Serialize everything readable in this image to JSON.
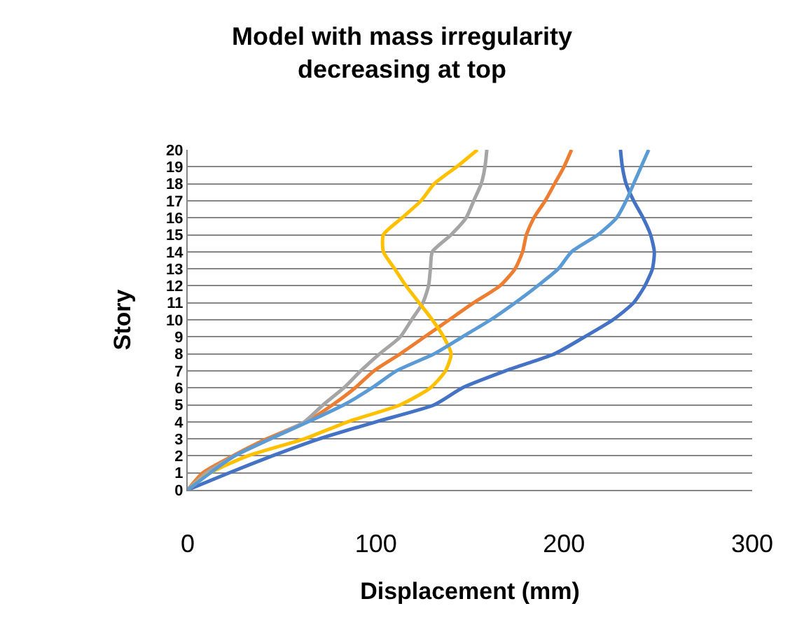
{
  "chart_data": {
    "type": "line",
    "title": "Model with mass irregularity decreasing at top",
    "xlabel": "Displacement (mm)",
    "ylabel": "Story",
    "xlim": [
      0,
      300
    ],
    "xticks": [
      0,
      100,
      200,
      300
    ],
    "ylim": [
      0,
      20
    ],
    "yticks": [
      0,
      1,
      2,
      3,
      4,
      5,
      6,
      7,
      8,
      9,
      10,
      11,
      12,
      13,
      14,
      15,
      16,
      17,
      18,
      19,
      20
    ],
    "grid": "y",
    "marker": "none",
    "line_style": "solid",
    "series": [
      {
        "color": "#4472c4",
        "x": [
          0,
          22,
          45,
          70,
          100,
          131,
          146,
          169,
          195,
          211,
          226,
          237,
          243,
          247,
          248,
          246,
          242,
          237,
          233,
          231,
          230
        ],
        "values": [
          0,
          1,
          2,
          3,
          4,
          5,
          6,
          7,
          8,
          9,
          10,
          11,
          12,
          13,
          14,
          15,
          16,
          17,
          18,
          19,
          20
        ]
      },
      {
        "color": "#ed7d31",
        "x": [
          0,
          8,
          24,
          42,
          63,
          77,
          89,
          99,
          113,
          126,
          139,
          152,
          166,
          174,
          178,
          180,
          184,
          190,
          195,
          200,
          204
        ],
        "values": [
          0,
          1,
          2,
          3,
          4,
          5,
          6,
          7,
          8,
          9,
          10,
          11,
          12,
          13,
          14,
          15,
          16,
          17,
          18,
          19,
          20
        ]
      },
      {
        "color": "#a5a5a5",
        "x": [
          0,
          10,
          25,
          44,
          62,
          72,
          83,
          92,
          102,
          113,
          119,
          125,
          128,
          129,
          130,
          140,
          148,
          152,
          156,
          158,
          159
        ],
        "values": [
          0,
          1,
          2,
          3,
          4,
          5,
          6,
          7,
          8,
          9,
          10,
          11,
          12,
          13,
          14,
          15,
          16,
          17,
          18,
          19,
          20
        ]
      },
      {
        "color": "#ffc000",
        "x": [
          0,
          12,
          32,
          62,
          85,
          113,
          129,
          137,
          140,
          136,
          130,
          123,
          116,
          110,
          104,
          104,
          114,
          124,
          131,
          143,
          154
        ],
        "values": [
          0,
          1,
          2,
          3,
          4,
          5,
          6,
          7,
          8,
          9,
          10,
          11,
          12,
          13,
          14,
          15,
          16,
          17,
          18,
          19,
          20
        ]
      },
      {
        "color": "#5b9bd5",
        "x": [
          0,
          12,
          25,
          44,
          64,
          83,
          98,
          111,
          131,
          146,
          161,
          174,
          186,
          197,
          204,
          218,
          228,
          233,
          237,
          241,
          245
        ],
        "values": [
          0,
          1,
          2,
          3,
          4,
          5,
          6,
          7,
          8,
          9,
          10,
          11,
          12,
          13,
          14,
          15,
          16,
          17,
          18,
          19,
          20
        ]
      }
    ]
  }
}
